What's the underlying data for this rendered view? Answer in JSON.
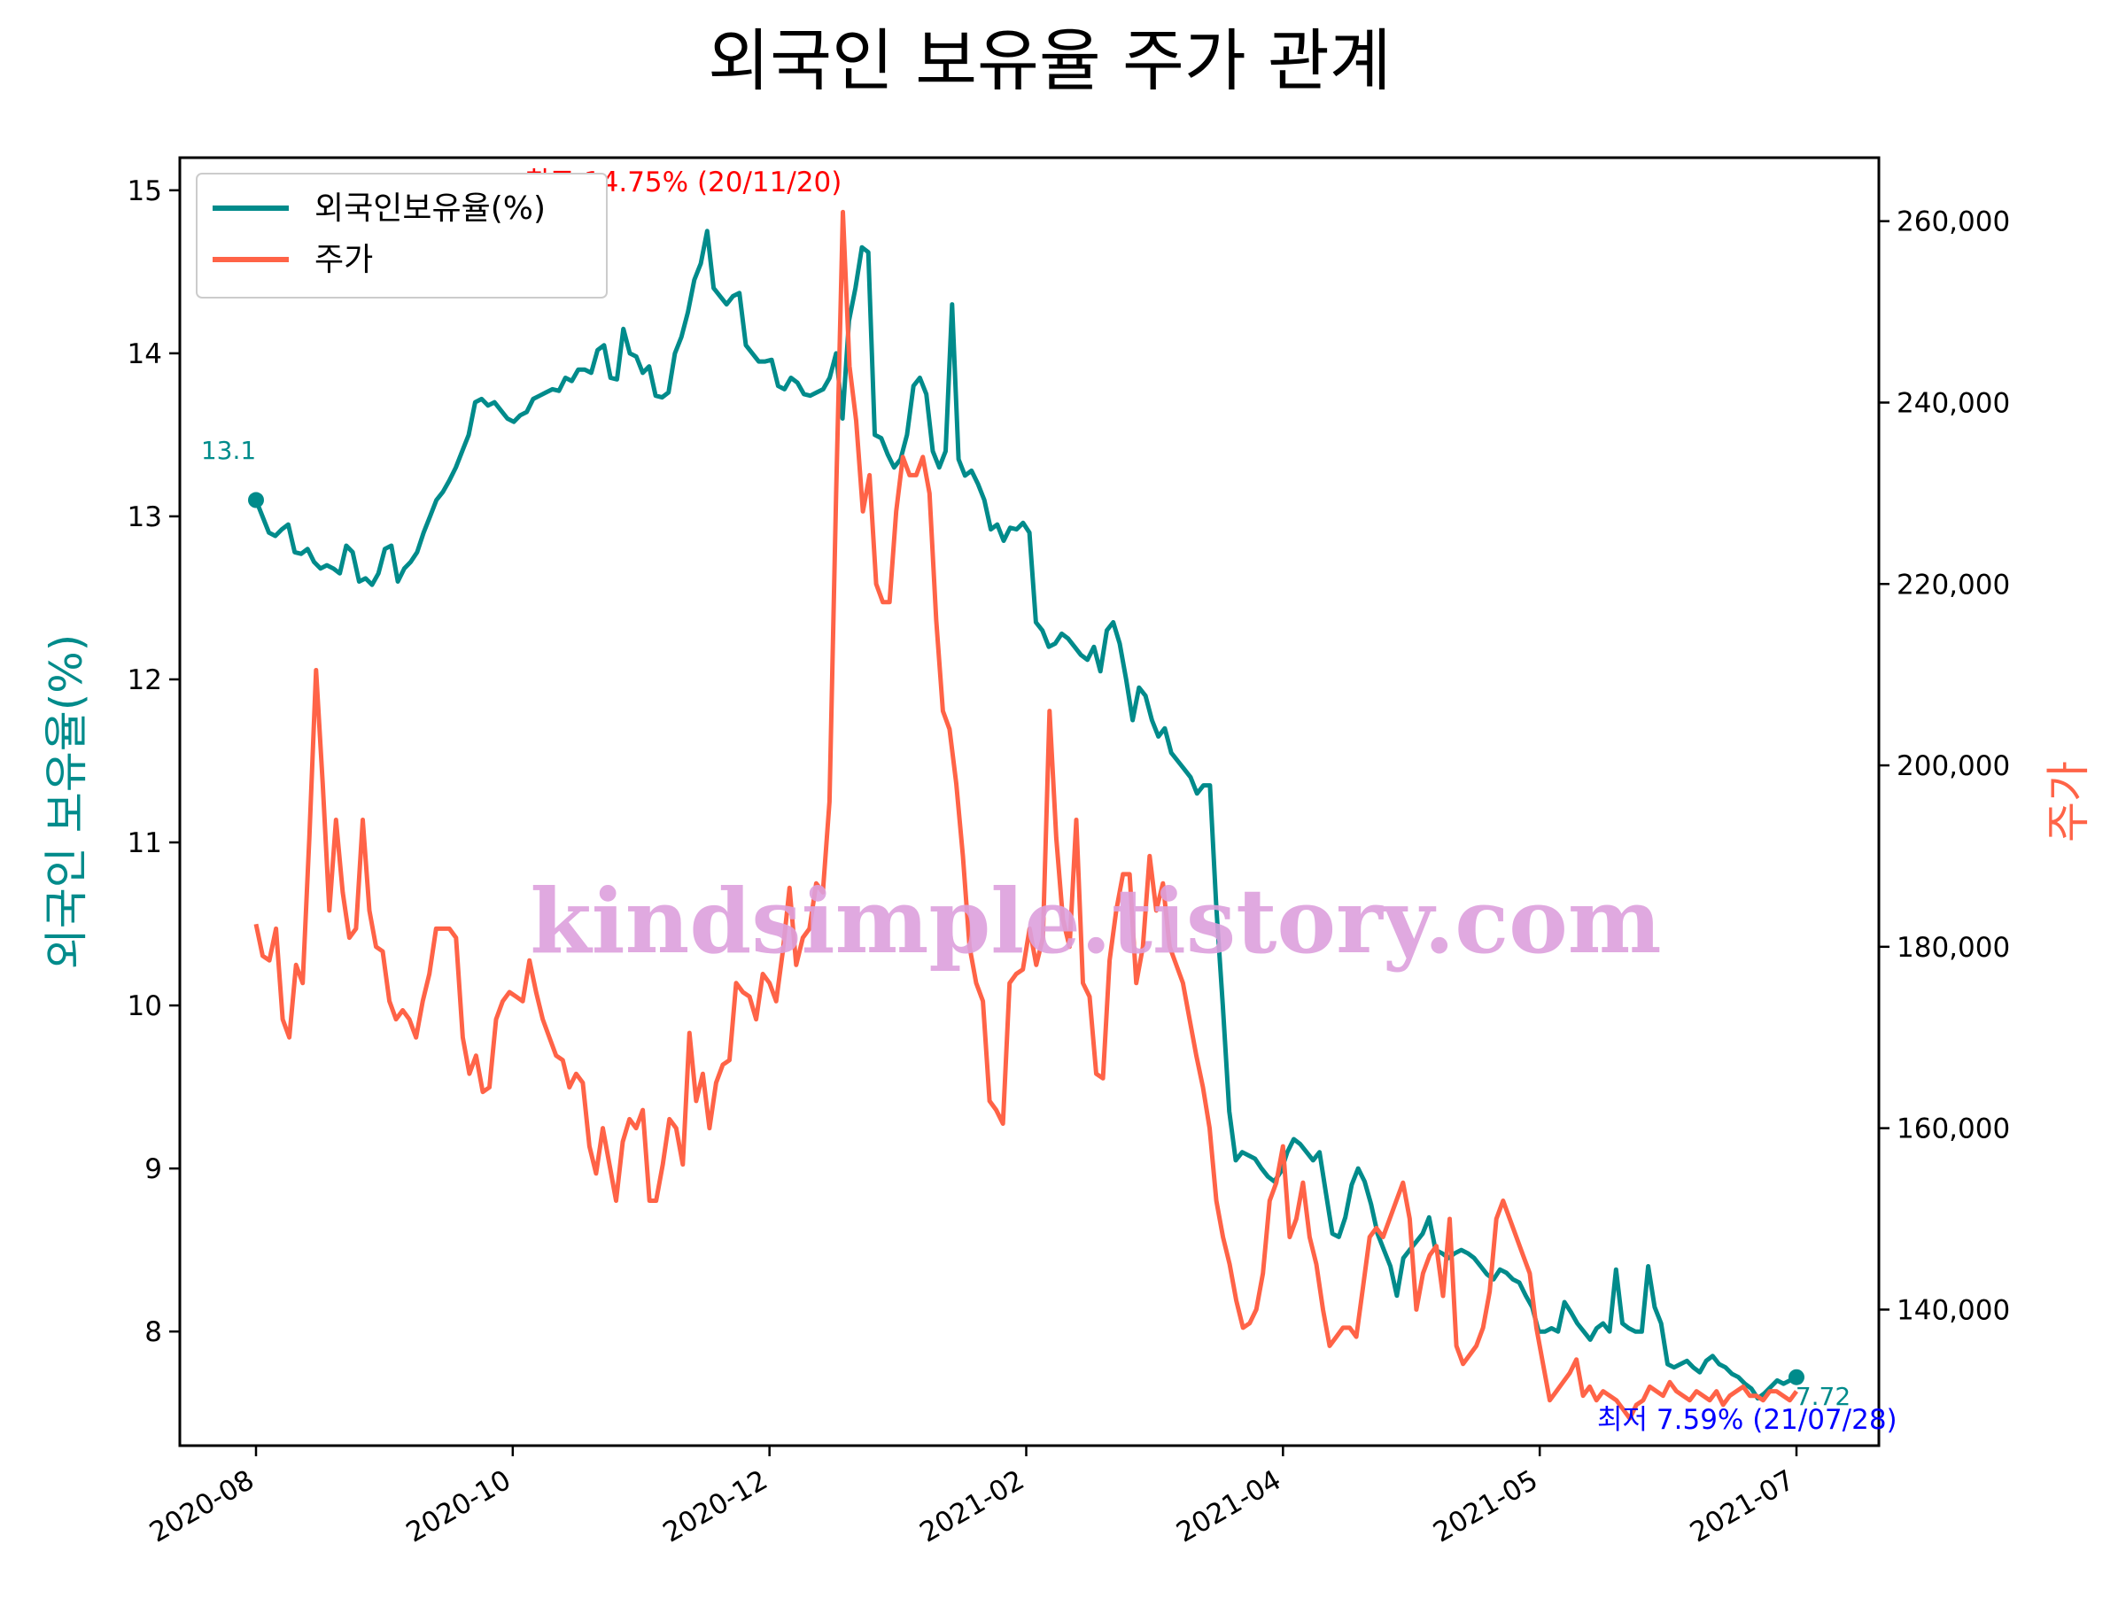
{
  "chart_data": {
    "type": "line",
    "title": "외국인 보유율 주가 관계",
    "ylabel_left": "외국인 보유율(%)",
    "ylabel_right": "주가",
    "x_ticks": [
      "2020-08",
      "2020-10",
      "2020-12",
      "2021-02",
      "2021-04",
      "2021-05",
      "2021-07"
    ],
    "y_left_ticks": [
      "8",
      "9",
      "10",
      "11",
      "12",
      "13",
      "14",
      "15"
    ],
    "y_right_ticks": [
      "140,000",
      "160,000",
      "180,000",
      "200,000",
      "220,000",
      "240,000",
      "260,000"
    ],
    "ylim_left": [
      7.3,
      15.2
    ],
    "ylim_right": [
      125000,
      267000
    ],
    "grid": false,
    "legend_position": "top-left",
    "colors": {
      "holding": "#008B8B",
      "price": "#FF6347",
      "max_label": "#FF0000",
      "min_label": "#0000FF",
      "watermark": "#DDA0DD"
    },
    "series": [
      {
        "name": "외국인보유율(%)",
        "axis": "left",
        "values": [
          13.1,
          13.0,
          12.9,
          12.88,
          12.92,
          12.95,
          12.78,
          12.77,
          12.8,
          12.72,
          12.68,
          12.7,
          12.68,
          12.65,
          12.82,
          12.78,
          12.6,
          12.62,
          12.58,
          12.65,
          12.8,
          12.82,
          12.6,
          12.68,
          12.72,
          12.78,
          12.9,
          13.0,
          13.1,
          13.15,
          13.22,
          13.3,
          13.4,
          13.5,
          13.7,
          13.72,
          13.68,
          13.7,
          13.65,
          13.6,
          13.58,
          13.62,
          13.64,
          13.72,
          13.74,
          13.76,
          13.78,
          13.77,
          13.85,
          13.83,
          13.9,
          13.9,
          13.88,
          14.02,
          14.05,
          13.85,
          13.84,
          14.15,
          14.0,
          13.98,
          13.88,
          13.92,
          13.74,
          13.73,
          13.76,
          14.0,
          14.1,
          14.25,
          14.45,
          14.55,
          14.75,
          14.4,
          14.35,
          14.3,
          14.35,
          14.37,
          14.05,
          14.0,
          13.95,
          13.95,
          13.96,
          13.8,
          13.78,
          13.85,
          13.82,
          13.75,
          13.74,
          13.76,
          13.78,
          13.85,
          14.0,
          13.6,
          14.2,
          14.4,
          14.65,
          14.62,
          13.5,
          13.48,
          13.38,
          13.3,
          13.35,
          13.5,
          13.8,
          13.85,
          13.75,
          13.4,
          13.3,
          13.4,
          14.3,
          13.35,
          13.25,
          13.28,
          13.2,
          13.1,
          12.92,
          12.95,
          12.85,
          12.93,
          12.92,
          12.96,
          12.9,
          12.35,
          12.3,
          12.2,
          12.22,
          12.28,
          12.25,
          12.2,
          12.15,
          12.12,
          12.2,
          12.05,
          12.3,
          12.35,
          12.22,
          12.0,
          11.75,
          11.95,
          11.9,
          11.75,
          11.65,
          11.7,
          11.55,
          11.5,
          11.45,
          11.4,
          11.3,
          11.35,
          11.35,
          10.6,
          10.0,
          9.35,
          9.05,
          9.1,
          9.08,
          9.06,
          9.0,
          8.95,
          8.92,
          8.98,
          9.1,
          9.18,
          9.15,
          9.1,
          9.05,
          9.1,
          8.85,
          8.6,
          8.58,
          8.7,
          8.9,
          9.0,
          8.92,
          8.78,
          8.6,
          8.5,
          8.4,
          8.22,
          8.45,
          8.5,
          8.55,
          8.6,
          8.7,
          8.5,
          8.48,
          8.45,
          8.48,
          8.5,
          8.48,
          8.45,
          8.4,
          8.35,
          8.32,
          8.38,
          8.36,
          8.32,
          8.3,
          8.22,
          8.15,
          8.0,
          8.0,
          8.02,
          8.0,
          8.18,
          8.12,
          8.05,
          8.0,
          7.95,
          8.02,
          8.05,
          8.0,
          8.38,
          8.05,
          8.02,
          8.0,
          8.0,
          8.4,
          8.15,
          8.05,
          7.8,
          7.78,
          7.8,
          7.82,
          7.78,
          7.75,
          7.82,
          7.85,
          7.8,
          7.78,
          7.74,
          7.72,
          7.68,
          7.65,
          7.59,
          7.62,
          7.66,
          7.7,
          7.68,
          7.7,
          7.72
        ]
      },
      {
        "name": "주가",
        "axis": "right",
        "values": [
          182500,
          179000,
          178500,
          182000,
          172000,
          170000,
          178000,
          176000,
          192000,
          210500,
          198000,
          184000,
          194000,
          186000,
          181000,
          182000,
          194000,
          184000,
          180000,
          179500,
          174000,
          172000,
          173000,
          172000,
          170000,
          174000,
          177000,
          182000,
          182000,
          182000,
          181000,
          170000,
          166000,
          168000,
          164000,
          164500,
          172000,
          174000,
          175000,
          174500,
          174000,
          178500,
          175000,
          172000,
          170000,
          168000,
          167500,
          164500,
          166000,
          165000,
          158000,
          155000,
          160000,
          156000,
          152000,
          158500,
          161000,
          160000,
          162000,
          152000,
          152000,
          156000,
          161000,
          160000,
          156000,
          170500,
          163000,
          166000,
          160000,
          165000,
          167000,
          167500,
          176000,
          175000,
          174500,
          172000,
          177000,
          176000,
          174000,
          179500,
          186500,
          178000,
          181000,
          182000,
          187000,
          186000,
          196000,
          230000,
          261000,
          244000,
          238000,
          228000,
          232000,
          220000,
          218000,
          218000,
          228000,
          234000,
          232000,
          232000,
          234000,
          230000,
          216000,
          206000,
          204000,
          198000,
          190000,
          180000,
          176000,
          174000,
          163000,
          162000,
          160500,
          176000,
          177000,
          177500,
          182000,
          178000,
          181000,
          206000,
          192000,
          183000,
          180000,
          194000,
          176000,
          174500,
          166000,
          165500,
          178500,
          184000,
          188000,
          188000,
          176000,
          180000,
          190000,
          184000,
          187000,
          180000,
          178000,
          176000,
          172000,
          168000,
          164500,
          160000,
          152000,
          148000,
          145000,
          141000,
          138000,
          138500,
          140000,
          144000,
          152000,
          154000,
          158000,
          148000,
          150000,
          154000,
          148000,
          145000,
          140000,
          136000,
          137000,
          138000,
          138000,
          137000,
          142500,
          148000,
          149000,
          148000,
          150000,
          152000,
          154000,
          150000,
          140000,
          144000,
          146000,
          147000,
          141500,
          150000,
          136000,
          134000,
          135000,
          136000,
          138000,
          142000,
          150000,
          152000,
          150000,
          148000,
          146000,
          144000,
          138000,
          134000,
          130000,
          131000,
          132000,
          133000,
          134500,
          130500,
          131500,
          130000,
          131000,
          130500,
          130000,
          129000,
          128000,
          129500,
          130000,
          131500,
          131000,
          130500,
          132000,
          131000,
          130500,
          130000,
          131000,
          130500,
          130000,
          131000,
          129500,
          130500,
          131000,
          131500,
          130500,
          130500,
          130000,
          131000,
          131000,
          130500,
          130000,
          131000
        ]
      }
    ],
    "annotations": {
      "start_value": "13.1",
      "end_value": "7.72",
      "max_label": "최고 14.75% (20/11/20)",
      "min_label": "최저 7.59% (21/07/28)"
    },
    "watermark": "kindsimple.tistory.com"
  }
}
